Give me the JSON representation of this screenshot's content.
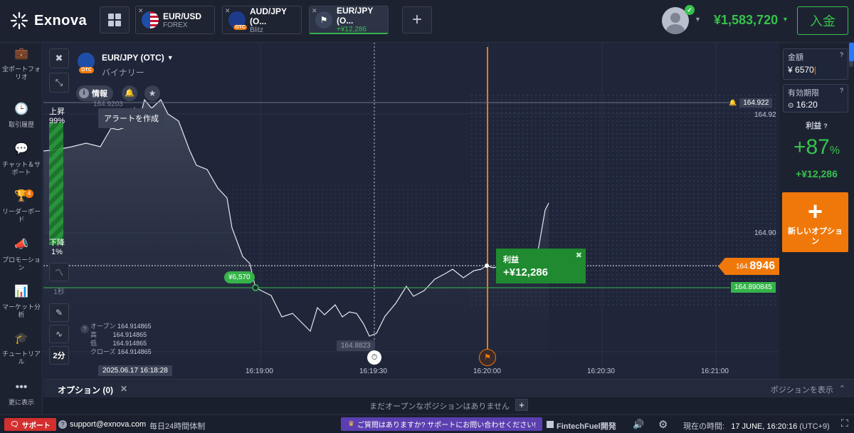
{
  "brand": {
    "name": "Exnova"
  },
  "tabs": [
    {
      "pair": "EUR/USD",
      "sub": "FOREX"
    },
    {
      "pair": "AUD/JPY (O...",
      "sub": "Blitz"
    },
    {
      "pair": "EUR/JPY (O...",
      "sub": "+¥12,286"
    }
  ],
  "account": {
    "balance": "¥1,583,720",
    "deposit": "入金"
  },
  "sidebar": [
    {
      "label": "全ポートフォリオ",
      "icon": "briefcase-icon"
    },
    {
      "label": "取引履歴",
      "icon": "clock-icon"
    },
    {
      "label": "チャット＆サポート",
      "icon": "chat-icon"
    },
    {
      "label": "リーダーボード",
      "icon": "trophy-icon",
      "badge": "4"
    },
    {
      "label": "プロモーション",
      "icon": "megaphone-icon"
    },
    {
      "label": "マーケット分析",
      "icon": "chart-icon"
    },
    {
      "label": "チュートリアル",
      "icon": "graduation-icon"
    },
    {
      "label": "更に表示",
      "icon": "more-icon"
    }
  ],
  "asset": {
    "name": "EUR/JPY (OTC)",
    "type": "バイナリー",
    "badge": "OTC",
    "info": "情報",
    "alert_tooltip": "アラートを作成"
  },
  "sentiment": {
    "up_label": "上昇",
    "up_pct": "99%",
    "down_label": "下降",
    "down_pct": "1%"
  },
  "tools": {
    "timeframe": "1秒",
    "period": "2分"
  },
  "ohlc": {
    "open_label": "オープン",
    "open": "164.914865",
    "high_label": "高",
    "high": "164.914865",
    "low_label": "低",
    "low": "164.914865",
    "close_label": "クローズ",
    "close": "164.914865"
  },
  "chart_labels": {
    "high_marker": "164.9203",
    "low_marker": "164.8823",
    "price_alert": "164.922",
    "y_top": "164.92",
    "y_mid": "164.90",
    "current_prefix": "164.",
    "current_suffix": "8946",
    "entry_price": "164.890845",
    "entry_amount": "¥6,570",
    "cursor_time": "2025.06.17 16:18:28"
  },
  "xaxis": [
    "16:19:00",
    "16:19:30",
    "16:20:00",
    "16:20:30",
    "16:21:00"
  ],
  "profit_popup": {
    "title": "利益",
    "value": "+¥12,286"
  },
  "trade_panel": {
    "amount_label": "金額",
    "amount_currency": "¥",
    "amount_value": "6570",
    "expiry_label": "有効期限",
    "expiry_value": "16:20",
    "profit_label": "利益",
    "profit_pct": "+87",
    "pct_sign": "%",
    "profit_amount": "+¥12,286",
    "new_option": "新しいオプション"
  },
  "options_bar": {
    "tab": "オプション (0)",
    "show": "ポジションを表示",
    "empty": "まだオープンなポジションはありません"
  },
  "footer": {
    "support": "サポート",
    "email": "support@exnova.com",
    "hours": "毎日24時間体制",
    "question": "ご質問はありますか? サポートにお問い合わせください!",
    "fintech": "FintechFuel開発",
    "time_label": "現在の時間:",
    "time": "17 JUNE, 16:20:16",
    "tz": "(UTC+9)"
  },
  "colors": {
    "green": "#35c24b",
    "orange": "#f0780a",
    "bg": "#1d2231"
  }
}
